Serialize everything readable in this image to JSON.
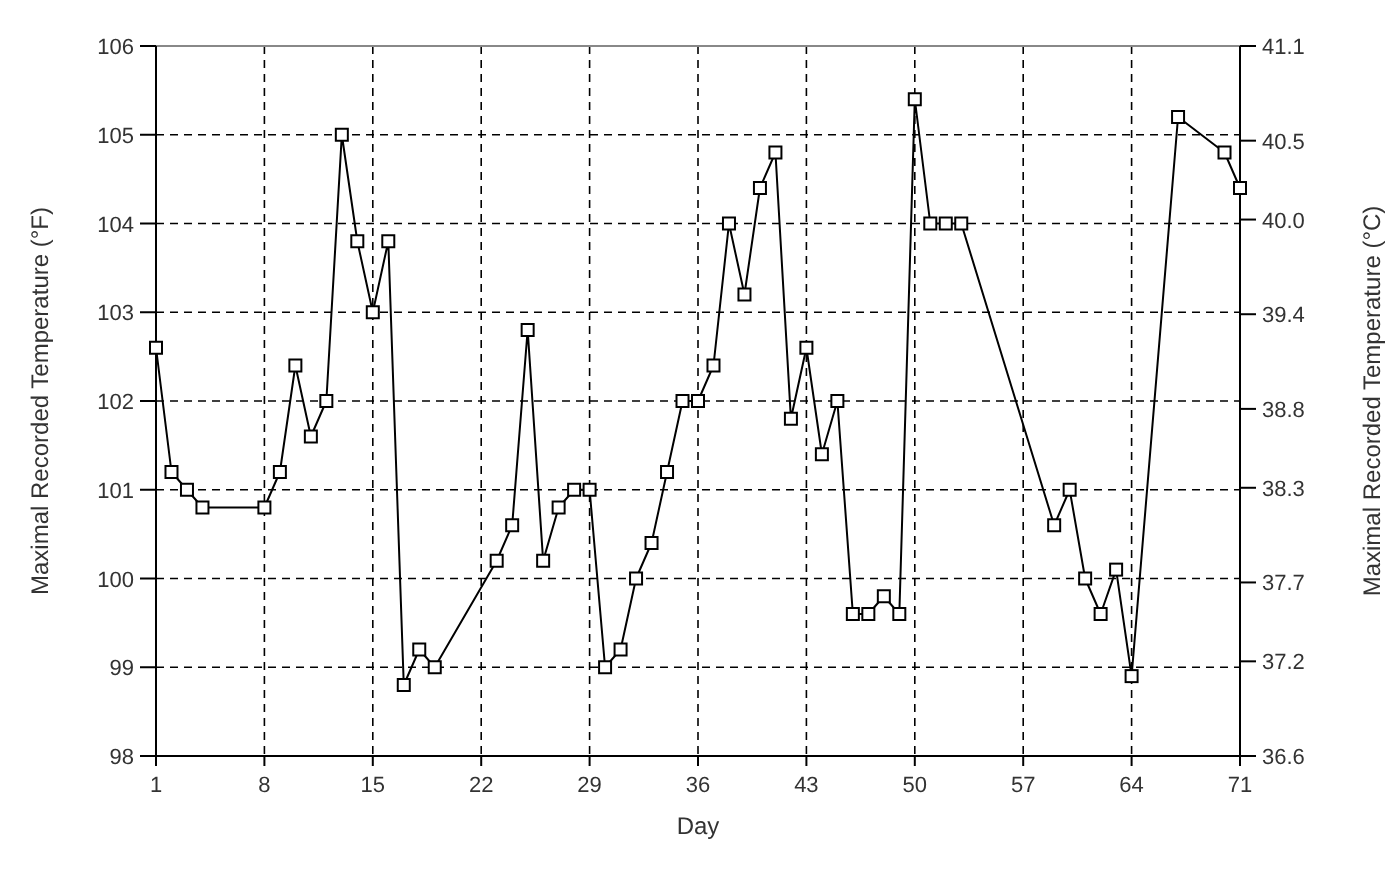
{
  "chart_data": {
    "type": "line",
    "xlabel": "Day",
    "ylabel": "Maximal Recorded Temperature (°F)",
    "y2label": "Maximal Recorded Temperature (°C)",
    "x": [
      1,
      2,
      3,
      4,
      8,
      9,
      10,
      11,
      12,
      13,
      14,
      15,
      16,
      17,
      18,
      19,
      23,
      24,
      25,
      26,
      27,
      28,
      29,
      30,
      31,
      32,
      33,
      34,
      35,
      36,
      37,
      38,
      39,
      40,
      41,
      42,
      43,
      44,
      45,
      46,
      47,
      48,
      49,
      50,
      51,
      52,
      53,
      59,
      60,
      61,
      62,
      63,
      64,
      67,
      70,
      71
    ],
    "series": [
      {
        "color": "#000000",
        "values": [
          102.6,
          101.2,
          101.0,
          100.8,
          100.8,
          101.2,
          102.4,
          101.6,
          102.0,
          105.0,
          103.8,
          103.0,
          103.8,
          98.8,
          99.2,
          99.0,
          100.2,
          100.6,
          102.8,
          100.2,
          100.8,
          101.0,
          101.0,
          99.0,
          99.2,
          100.0,
          100.4,
          101.2,
          102.0,
          102.0,
          102.4,
          104.0,
          103.2,
          104.4,
          104.8,
          101.8,
          102.6,
          101.4,
          102.0,
          99.6,
          99.6,
          99.8,
          99.6,
          105.4,
          104.0,
          104.0,
          104.0,
          100.6,
          101.0,
          100.0,
          99.6,
          100.1,
          98.9,
          105.2,
          104.8,
          104.4
        ]
      }
    ],
    "xlim": [
      1,
      71
    ],
    "xticks": [
      1,
      8,
      15,
      22,
      29,
      36,
      43,
      50,
      57,
      64,
      71
    ],
    "ylim": [
      98,
      106
    ],
    "yticks": [
      98,
      99,
      100,
      101,
      102,
      103,
      104,
      105,
      106
    ],
    "y2lim": [
      36.6,
      41.1
    ],
    "y2ticks": [
      36.6,
      37.2,
      37.7,
      38.3,
      38.8,
      39.4,
      {
        "value": 40.0,
        "label": "40.0"
      },
      40.5,
      41.1
    ],
    "grid": true,
    "marker": "square",
    "line_style": "solid"
  }
}
